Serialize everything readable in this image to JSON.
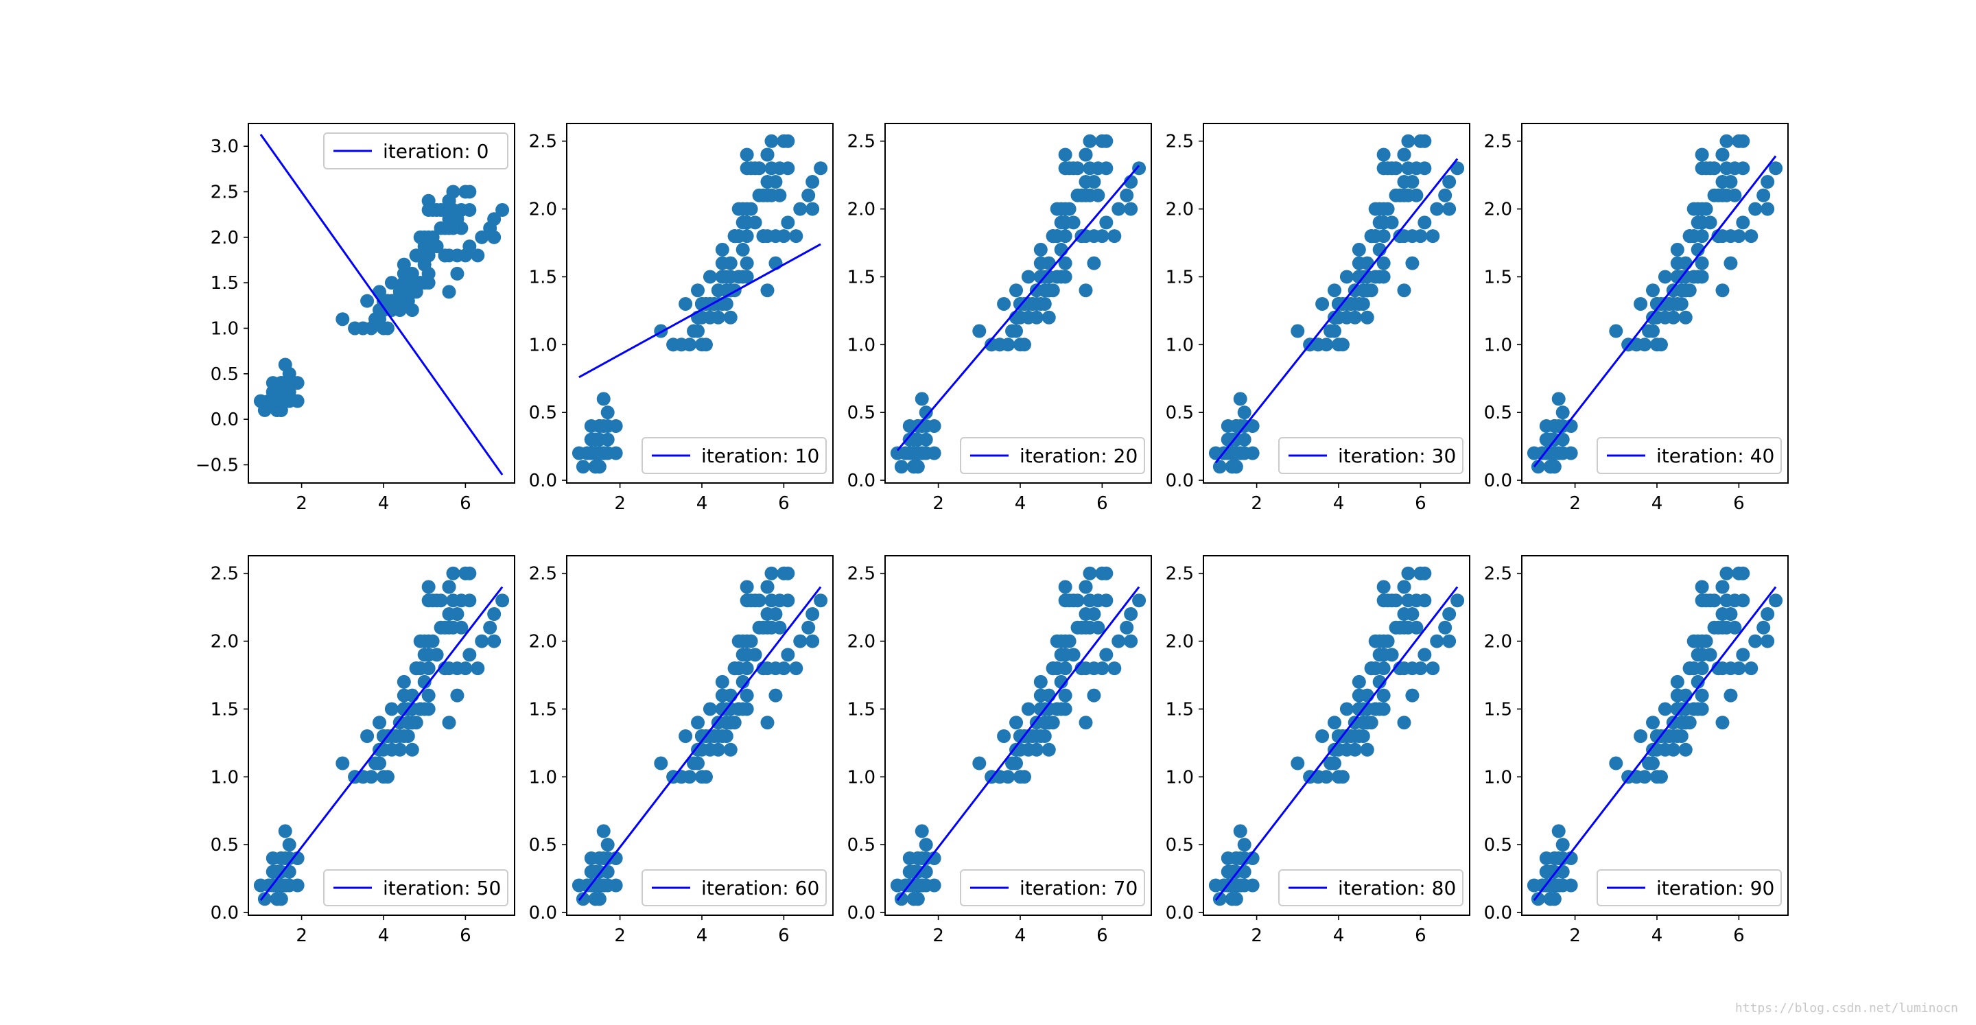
{
  "figure": {
    "watermark": "https://blog.csdn.net/luminocn"
  },
  "colors": {
    "scatter": "#1f77b4",
    "line": "#0000ff",
    "axes": "#000000",
    "legend_border": "#cccccc"
  },
  "chart_data": [
    {
      "type": "scatter",
      "legend": "iteration: 0",
      "legend_loc": "upper right",
      "xlim": [
        0.7,
        7.2
      ],
      "ylim": [
        -0.7,
        3.25
      ],
      "xticks": [
        {
          "v": 2,
          "label": "2"
        },
        {
          "v": 4,
          "label": "4"
        },
        {
          "v": 6,
          "label": "6"
        }
      ],
      "yticks": [
        {
          "v": -0.5,
          "label": "−0.5"
        },
        {
          "v": 0,
          "label": "0.0"
        },
        {
          "v": 0.5,
          "label": "0.5"
        },
        {
          "v": 1,
          "label": "1.0"
        },
        {
          "v": 1.5,
          "label": "1.5"
        },
        {
          "v": 2,
          "label": "2.0"
        },
        {
          "v": 2.5,
          "label": "2.5"
        },
        {
          "v": 3,
          "label": "3.0"
        }
      ],
      "line": {
        "x": [
          1.0,
          6.9
        ],
        "y": [
          3.13,
          -0.61
        ]
      }
    },
    {
      "type": "scatter",
      "legend": "iteration: 10",
      "legend_loc": "lower right",
      "xlim": [
        0.7,
        7.2
      ],
      "ylim": [
        -0.02,
        2.63
      ],
      "xticks": [
        {
          "v": 2,
          "label": "2"
        },
        {
          "v": 4,
          "label": "4"
        },
        {
          "v": 6,
          "label": "6"
        }
      ],
      "yticks": [
        {
          "v": 0,
          "label": "0.0"
        },
        {
          "v": 0.5,
          "label": "0.5"
        },
        {
          "v": 1,
          "label": "1.0"
        },
        {
          "v": 1.5,
          "label": "1.5"
        },
        {
          "v": 2,
          "label": "2.0"
        },
        {
          "v": 2.5,
          "label": "2.5"
        }
      ],
      "line": {
        "x": [
          1.0,
          6.9
        ],
        "y": [
          0.76,
          1.74
        ]
      }
    },
    {
      "type": "scatter",
      "legend": "iteration: 20",
      "legend_loc": "lower right",
      "xlim": [
        0.7,
        7.2
      ],
      "ylim": [
        -0.02,
        2.63
      ],
      "xticks": [
        {
          "v": 2,
          "label": "2"
        },
        {
          "v": 4,
          "label": "4"
        },
        {
          "v": 6,
          "label": "6"
        }
      ],
      "yticks": [
        {
          "v": 0,
          "label": "0.0"
        },
        {
          "v": 0.5,
          "label": "0.5"
        },
        {
          "v": 1,
          "label": "1.0"
        },
        {
          "v": 1.5,
          "label": "1.5"
        },
        {
          "v": 2,
          "label": "2.0"
        },
        {
          "v": 2.5,
          "label": "2.5"
        }
      ],
      "line": {
        "x": [
          1.0,
          6.9
        ],
        "y": [
          0.22,
          2.32
        ]
      }
    },
    {
      "type": "scatter",
      "legend": "iteration: 30",
      "legend_loc": "lower right",
      "xlim": [
        0.7,
        7.2
      ],
      "ylim": [
        -0.02,
        2.63
      ],
      "xticks": [
        {
          "v": 2,
          "label": "2"
        },
        {
          "v": 4,
          "label": "4"
        },
        {
          "v": 6,
          "label": "6"
        }
      ],
      "yticks": [
        {
          "v": 0,
          "label": "0.0"
        },
        {
          "v": 0.5,
          "label": "0.5"
        },
        {
          "v": 1,
          "label": "1.0"
        },
        {
          "v": 1.5,
          "label": "1.5"
        },
        {
          "v": 2,
          "label": "2.0"
        },
        {
          "v": 2.5,
          "label": "2.5"
        }
      ],
      "line": {
        "x": [
          1.0,
          6.9
        ],
        "y": [
          0.13,
          2.37
        ]
      }
    },
    {
      "type": "scatter",
      "legend": "iteration: 40",
      "legend_loc": "lower right",
      "xlim": [
        0.7,
        7.2
      ],
      "ylim": [
        -0.02,
        2.63
      ],
      "xticks": [
        {
          "v": 2,
          "label": "2"
        },
        {
          "v": 4,
          "label": "4"
        },
        {
          "v": 6,
          "label": "6"
        }
      ],
      "yticks": [
        {
          "v": 0,
          "label": "0.0"
        },
        {
          "v": 0.5,
          "label": "0.5"
        },
        {
          "v": 1,
          "label": "1.0"
        },
        {
          "v": 1.5,
          "label": "1.5"
        },
        {
          "v": 2,
          "label": "2.0"
        },
        {
          "v": 2.5,
          "label": "2.5"
        }
      ],
      "line": {
        "x": [
          1.0,
          6.9
        ],
        "y": [
          0.1,
          2.39
        ]
      }
    },
    {
      "type": "scatter",
      "legend": "iteration: 50",
      "legend_loc": "lower right",
      "xlim": [
        0.7,
        7.2
      ],
      "ylim": [
        -0.02,
        2.63
      ],
      "xticks": [
        {
          "v": 2,
          "label": "2"
        },
        {
          "v": 4,
          "label": "4"
        },
        {
          "v": 6,
          "label": "6"
        }
      ],
      "yticks": [
        {
          "v": 0,
          "label": "0.0"
        },
        {
          "v": 0.5,
          "label": "0.5"
        },
        {
          "v": 1,
          "label": "1.0"
        },
        {
          "v": 1.5,
          "label": "1.5"
        },
        {
          "v": 2,
          "label": "2.0"
        },
        {
          "v": 2.5,
          "label": "2.5"
        }
      ],
      "line": {
        "x": [
          1.0,
          6.9
        ],
        "y": [
          0.09,
          2.4
        ]
      }
    },
    {
      "type": "scatter",
      "legend": "iteration: 60",
      "legend_loc": "lower right",
      "xlim": [
        0.7,
        7.2
      ],
      "ylim": [
        -0.02,
        2.63
      ],
      "xticks": [
        {
          "v": 2,
          "label": "2"
        },
        {
          "v": 4,
          "label": "4"
        },
        {
          "v": 6,
          "label": "6"
        }
      ],
      "yticks": [
        {
          "v": 0,
          "label": "0.0"
        },
        {
          "v": 0.5,
          "label": "0.5"
        },
        {
          "v": 1,
          "label": "1.0"
        },
        {
          "v": 1.5,
          "label": "1.5"
        },
        {
          "v": 2,
          "label": "2.0"
        },
        {
          "v": 2.5,
          "label": "2.5"
        }
      ],
      "line": {
        "x": [
          1.0,
          6.9
        ],
        "y": [
          0.09,
          2.4
        ]
      }
    },
    {
      "type": "scatter",
      "legend": "iteration: 70",
      "legend_loc": "lower right",
      "xlim": [
        0.7,
        7.2
      ],
      "ylim": [
        -0.02,
        2.63
      ],
      "xticks": [
        {
          "v": 2,
          "label": "2"
        },
        {
          "v": 4,
          "label": "4"
        },
        {
          "v": 6,
          "label": "6"
        }
      ],
      "yticks": [
        {
          "v": 0,
          "label": "0.0"
        },
        {
          "v": 0.5,
          "label": "0.5"
        },
        {
          "v": 1,
          "label": "1.0"
        },
        {
          "v": 1.5,
          "label": "1.5"
        },
        {
          "v": 2,
          "label": "2.0"
        },
        {
          "v": 2.5,
          "label": "2.5"
        }
      ],
      "line": {
        "x": [
          1.0,
          6.9
        ],
        "y": [
          0.09,
          2.4
        ]
      }
    },
    {
      "type": "scatter",
      "legend": "iteration: 80",
      "legend_loc": "lower right",
      "xlim": [
        0.7,
        7.2
      ],
      "ylim": [
        -0.02,
        2.63
      ],
      "xticks": [
        {
          "v": 2,
          "label": "2"
        },
        {
          "v": 4,
          "label": "4"
        },
        {
          "v": 6,
          "label": "6"
        }
      ],
      "yticks": [
        {
          "v": 0,
          "label": "0.0"
        },
        {
          "v": 0.5,
          "label": "0.5"
        },
        {
          "v": 1,
          "label": "1.0"
        },
        {
          "v": 1.5,
          "label": "1.5"
        },
        {
          "v": 2,
          "label": "2.0"
        },
        {
          "v": 2.5,
          "label": "2.5"
        }
      ],
      "line": {
        "x": [
          1.0,
          6.9
        ],
        "y": [
          0.09,
          2.4
        ]
      }
    },
    {
      "type": "scatter",
      "legend": "iteration: 90",
      "legend_loc": "lower right",
      "xlim": [
        0.7,
        7.2
      ],
      "ylim": [
        -0.02,
        2.63
      ],
      "xticks": [
        {
          "v": 2,
          "label": "2"
        },
        {
          "v": 4,
          "label": "4"
        },
        {
          "v": 6,
          "label": "6"
        }
      ],
      "yticks": [
        {
          "v": 0,
          "label": "0.0"
        },
        {
          "v": 0.5,
          "label": "0.5"
        },
        {
          "v": 1,
          "label": "1.0"
        },
        {
          "v": 1.5,
          "label": "1.5"
        },
        {
          "v": 2,
          "label": "2.0"
        },
        {
          "v": 2.5,
          "label": "2.5"
        }
      ],
      "line": {
        "x": [
          1.0,
          6.9
        ],
        "y": [
          0.09,
          2.4
        ]
      }
    }
  ],
  "scatter_points": [
    [
      1.4,
      0.2
    ],
    [
      1.4,
      0.2
    ],
    [
      1.3,
      0.2
    ],
    [
      1.5,
      0.2
    ],
    [
      1.4,
      0.2
    ],
    [
      1.7,
      0.4
    ],
    [
      1.4,
      0.3
    ],
    [
      1.5,
      0.2
    ],
    [
      1.4,
      0.2
    ],
    [
      1.5,
      0.1
    ],
    [
      1.5,
      0.2
    ],
    [
      1.6,
      0.2
    ],
    [
      1.4,
      0.1
    ],
    [
      1.1,
      0.1
    ],
    [
      1.2,
      0.2
    ],
    [
      1.5,
      0.4
    ],
    [
      1.3,
      0.4
    ],
    [
      1.4,
      0.3
    ],
    [
      1.7,
      0.3
    ],
    [
      1.5,
      0.3
    ],
    [
      1.7,
      0.2
    ],
    [
      1.5,
      0.4
    ],
    [
      1.0,
      0.2
    ],
    [
      1.7,
      0.5
    ],
    [
      1.9,
      0.2
    ],
    [
      1.6,
      0.2
    ],
    [
      1.6,
      0.4
    ],
    [
      1.5,
      0.2
    ],
    [
      1.4,
      0.2
    ],
    [
      1.6,
      0.2
    ],
    [
      1.6,
      0.2
    ],
    [
      1.5,
      0.4
    ],
    [
      1.5,
      0.1
    ],
    [
      1.4,
      0.2
    ],
    [
      1.5,
      0.2
    ],
    [
      1.2,
      0.2
    ],
    [
      1.3,
      0.2
    ],
    [
      1.4,
      0.1
    ],
    [
      1.3,
      0.2
    ],
    [
      1.5,
      0.2
    ],
    [
      1.3,
      0.3
    ],
    [
      1.3,
      0.3
    ],
    [
      1.3,
      0.2
    ],
    [
      1.6,
      0.6
    ],
    [
      1.9,
      0.4
    ],
    [
      1.4,
      0.3
    ],
    [
      1.6,
      0.2
    ],
    [
      1.4,
      0.2
    ],
    [
      1.5,
      0.2
    ],
    [
      1.4,
      0.2
    ],
    [
      4.7,
      1.4
    ],
    [
      4.5,
      1.5
    ],
    [
      4.9,
      1.5
    ],
    [
      4.0,
      1.3
    ],
    [
      4.6,
      1.5
    ],
    [
      4.5,
      1.3
    ],
    [
      4.7,
      1.6
    ],
    [
      3.3,
      1.0
    ],
    [
      4.6,
      1.3
    ],
    [
      3.9,
      1.4
    ],
    [
      3.5,
      1.0
    ],
    [
      4.2,
      1.5
    ],
    [
      4.0,
      1.0
    ],
    [
      4.7,
      1.4
    ],
    [
      3.6,
      1.3
    ],
    [
      4.4,
      1.4
    ],
    [
      4.5,
      1.5
    ],
    [
      4.1,
      1.0
    ],
    [
      4.5,
      1.5
    ],
    [
      3.9,
      1.1
    ],
    [
      4.8,
      1.8
    ],
    [
      4.0,
      1.3
    ],
    [
      4.9,
      1.5
    ],
    [
      4.7,
      1.2
    ],
    [
      4.3,
      1.3
    ],
    [
      4.4,
      1.4
    ],
    [
      4.8,
      1.4
    ],
    [
      5.0,
      1.7
    ],
    [
      4.5,
      1.5
    ],
    [
      3.5,
      1.0
    ],
    [
      3.8,
      1.1
    ],
    [
      3.7,
      1.0
    ],
    [
      3.9,
      1.2
    ],
    [
      5.1,
      1.6
    ],
    [
      4.5,
      1.5
    ],
    [
      4.5,
      1.6
    ],
    [
      4.7,
      1.5
    ],
    [
      4.4,
      1.3
    ],
    [
      4.1,
      1.3
    ],
    [
      4.0,
      1.3
    ],
    [
      4.4,
      1.2
    ],
    [
      4.6,
      1.4
    ],
    [
      4.0,
      1.2
    ],
    [
      3.3,
      1.0
    ],
    [
      4.2,
      1.3
    ],
    [
      4.2,
      1.2
    ],
    [
      4.2,
      1.3
    ],
    [
      4.3,
      1.3
    ],
    [
      3.0,
      1.1
    ],
    [
      4.1,
      1.3
    ],
    [
      6.0,
      2.5
    ],
    [
      5.1,
      1.9
    ],
    [
      5.9,
      2.1
    ],
    [
      5.6,
      1.8
    ],
    [
      5.8,
      2.2
    ],
    [
      6.6,
      2.1
    ],
    [
      4.5,
      1.7
    ],
    [
      6.3,
      1.8
    ],
    [
      5.8,
      1.8
    ],
    [
      6.1,
      2.5
    ],
    [
      5.1,
      2.0
    ],
    [
      5.3,
      1.9
    ],
    [
      5.5,
      2.1
    ],
    [
      5.0,
      2.0
    ],
    [
      5.1,
      2.4
    ],
    [
      5.3,
      2.3
    ],
    [
      5.5,
      1.8
    ],
    [
      6.7,
      2.2
    ],
    [
      6.9,
      2.3
    ],
    [
      5.0,
      1.5
    ],
    [
      5.7,
      2.3
    ],
    [
      4.9,
      2.0
    ],
    [
      6.7,
      2.0
    ],
    [
      4.9,
      1.8
    ],
    [
      5.7,
      2.1
    ],
    [
      6.0,
      1.8
    ],
    [
      4.8,
      1.8
    ],
    [
      4.9,
      1.8
    ],
    [
      5.6,
      2.1
    ],
    [
      5.8,
      1.6
    ],
    [
      6.1,
      1.9
    ],
    [
      6.4,
      2.0
    ],
    [
      5.6,
      2.2
    ],
    [
      5.1,
      1.5
    ],
    [
      5.6,
      1.4
    ],
    [
      6.1,
      2.3
    ],
    [
      5.6,
      2.4
    ],
    [
      5.5,
      1.8
    ],
    [
      4.8,
      1.8
    ],
    [
      5.4,
      2.1
    ],
    [
      5.6,
      2.4
    ],
    [
      5.1,
      2.3
    ],
    [
      5.1,
      1.9
    ],
    [
      5.9,
      2.3
    ],
    [
      5.7,
      2.5
    ],
    [
      5.2,
      2.3
    ],
    [
      5.0,
      1.9
    ],
    [
      5.2,
      2.0
    ],
    [
      5.4,
      2.3
    ],
    [
      5.1,
      1.8
    ]
  ]
}
